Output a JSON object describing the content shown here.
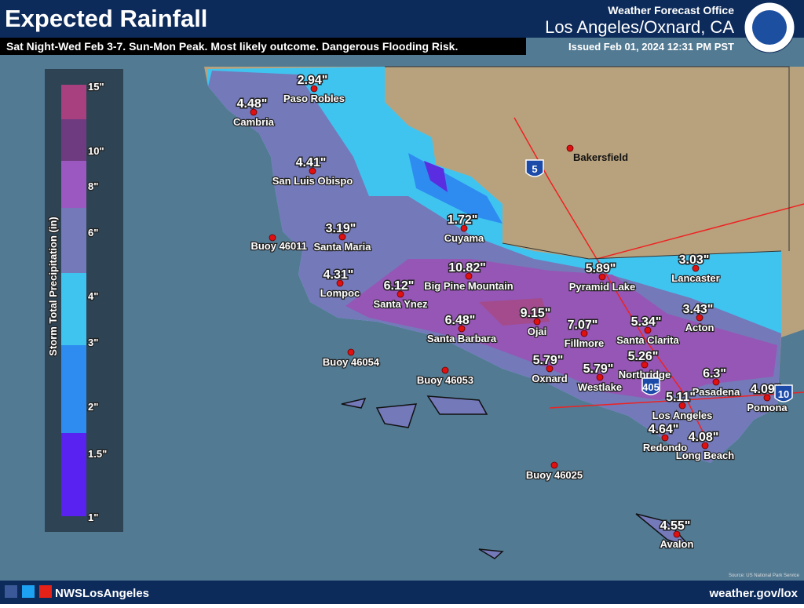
{
  "header": {
    "title": "Expected Rainfall",
    "subtitle": "Sat Night-Wed Feb 3-7. Sun-Mon Peak.  Most likely outcome. Dangerous Flooding Risk.",
    "office_line": "Weather Forecast Office",
    "office": "Los Angeles/Oxnard, CA",
    "issued": "Issued Feb 01, 2024 12:31 PM PST"
  },
  "legend": {
    "label": "Storm Total Precipitation (in)",
    "ticks": [
      "15\"",
      "10\"",
      "8\"",
      "6\"",
      "4\"",
      "3\"",
      "2\"",
      "1.5\"",
      "1\""
    ]
  },
  "stations": [
    {
      "name": "Paso Robles",
      "amount": "2.94\""
    },
    {
      "name": "Cambria",
      "amount": "4.48\""
    },
    {
      "name": "San Luis Obispo",
      "amount": "4.41\""
    },
    {
      "name": "Bakersfield"
    },
    {
      "name": "Buoy 46011"
    },
    {
      "name": "Santa Maria",
      "amount": "3.19\""
    },
    {
      "name": "Cuyama",
      "amount": "1.72\""
    },
    {
      "name": "Big Pine Mountain",
      "amount": "10.82\""
    },
    {
      "name": "Lompoc",
      "amount": "4.31\""
    },
    {
      "name": "Santa Ynez",
      "amount": "6.12\""
    },
    {
      "name": "Santa Barbara",
      "amount": "6.48\""
    },
    {
      "name": "Ojai",
      "amount": "9.15\""
    },
    {
      "name": "Fillmore",
      "amount": "7.07\""
    },
    {
      "name": "Pyramid Lake",
      "amount": "5.89\""
    },
    {
      "name": "Lancaster",
      "amount": "3.03\""
    },
    {
      "name": "Acton",
      "amount": "3.43\""
    },
    {
      "name": "Santa Clarita",
      "amount": "5.34\""
    },
    {
      "name": "Northridge",
      "amount": "5.26\""
    },
    {
      "name": "Oxnard",
      "amount": "5.79\""
    },
    {
      "name": "Westlake",
      "amount": "5.79\""
    },
    {
      "name": "Pasadena",
      "amount": "6.3\""
    },
    {
      "name": "Los Angeles",
      "amount": "5.11\""
    },
    {
      "name": "Pomona",
      "amount": "4.09\""
    },
    {
      "name": "Redondo",
      "amount": "4.64\""
    },
    {
      "name": "Long Beach",
      "amount": "4.08\""
    },
    {
      "name": "Buoy 46054"
    },
    {
      "name": "Buoy 46053"
    },
    {
      "name": "Buoy 46025"
    },
    {
      "name": "Avalon",
      "amount": "4.55\""
    }
  ],
  "highways": [
    "5",
    "405",
    "10"
  ],
  "footer": {
    "social": "NWSLosAngeles",
    "website": "weather.gov/lox",
    "source": "Source: US National Park Service"
  }
}
